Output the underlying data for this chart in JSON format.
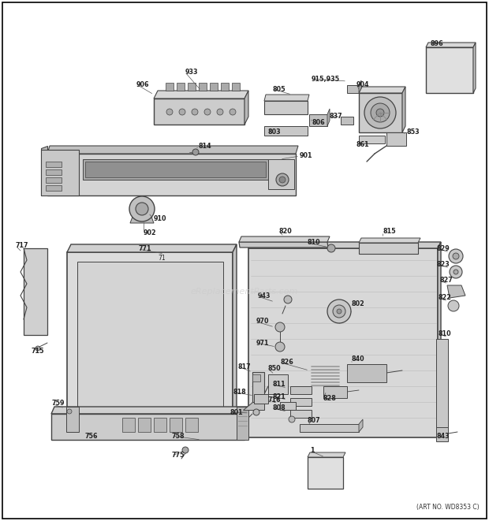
{
  "background_color": "#ffffff",
  "line_color": "#444444",
  "fill_light": "#e8e8e8",
  "fill_mid": "#d0d0d0",
  "fill_dark": "#b8b8b8",
  "text_color": "#222222",
  "watermark": "eReplacementParts.com",
  "art_no": "(ART NO. WD8353 C)",
  "fig_width": 6.2,
  "fig_height": 6.61,
  "dpi": 100
}
